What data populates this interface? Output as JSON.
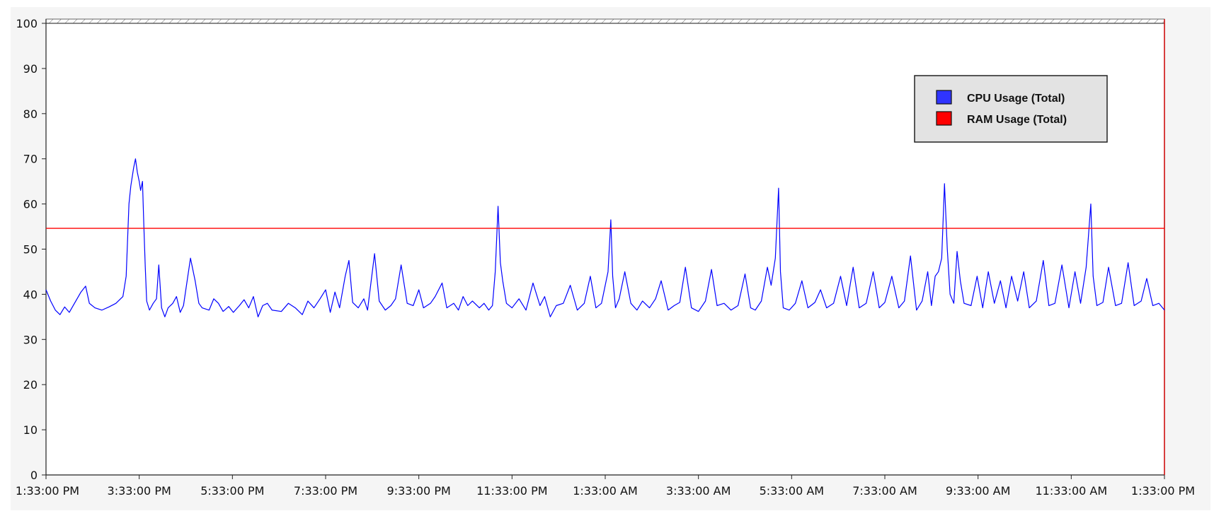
{
  "chart_data": {
    "type": "line",
    "title": "",
    "xlabel": "",
    "ylabel": "",
    "ylim": [
      0,
      100
    ],
    "yticks": [
      0,
      10,
      20,
      30,
      40,
      50,
      60,
      70,
      80,
      90,
      100
    ],
    "grid": false,
    "legend_position": "top-right",
    "x_tick_labels": [
      "1:33:00 PM",
      "3:33:00 PM",
      "5:33:00 PM",
      "7:33:00 PM",
      "9:33:00 PM",
      "11:33:00 PM",
      "1:33:00 AM",
      "3:33:00 AM",
      "5:33:00 AM",
      "7:33:00 AM",
      "9:33:00 AM",
      "11:33:00 AM",
      "1:33:00 PM"
    ],
    "x_range_hours": [
      0,
      24
    ],
    "series": [
      {
        "name": "CPU Usage (Total)",
        "color": "#0000ff",
        "baseline": 37.5,
        "points": [
          [
            0,
            41
          ],
          [
            0.1,
            38.5
          ],
          [
            0.2,
            36.5
          ],
          [
            0.3,
            35.5
          ],
          [
            0.4,
            37.2
          ],
          [
            0.5,
            36
          ],
          [
            0.6,
            37.8
          ],
          [
            0.75,
            40.5
          ],
          [
            0.85,
            41.8
          ],
          [
            0.93,
            38
          ],
          [
            1.05,
            37
          ],
          [
            1.2,
            36.5
          ],
          [
            1.35,
            37.2
          ],
          [
            1.5,
            38
          ],
          [
            1.65,
            39.5
          ],
          [
            1.72,
            44
          ],
          [
            1.78,
            60
          ],
          [
            1.82,
            64
          ],
          [
            1.88,
            68
          ],
          [
            1.92,
            70
          ],
          [
            1.96,
            67
          ],
          [
            2.0,
            65
          ],
          [
            2.03,
            63
          ],
          [
            2.07,
            65
          ],
          [
            2.1,
            55
          ],
          [
            2.13,
            46
          ],
          [
            2.16,
            38.5
          ],
          [
            2.22,
            36.5
          ],
          [
            2.3,
            38
          ],
          [
            2.37,
            39
          ],
          [
            2.42,
            46.5
          ],
          [
            2.48,
            37
          ],
          [
            2.55,
            35
          ],
          [
            2.62,
            37
          ],
          [
            2.72,
            38
          ],
          [
            2.8,
            39.5
          ],
          [
            2.88,
            36
          ],
          [
            2.95,
            37.5
          ],
          [
            3.1,
            48
          ],
          [
            3.2,
            43
          ],
          [
            3.28,
            38
          ],
          [
            3.35,
            37
          ],
          [
            3.5,
            36.5
          ],
          [
            3.6,
            39
          ],
          [
            3.7,
            38
          ],
          [
            3.8,
            36.2
          ],
          [
            3.92,
            37.3
          ],
          [
            4.02,
            36
          ],
          [
            4.15,
            37.5
          ],
          [
            4.25,
            38.8
          ],
          [
            4.35,
            37
          ],
          [
            4.45,
            39.5
          ],
          [
            4.55,
            35
          ],
          [
            4.65,
            37.5
          ],
          [
            4.75,
            38
          ],
          [
            4.85,
            36.5
          ],
          [
            5.05,
            36.2
          ],
          [
            5.2,
            38
          ],
          [
            5.35,
            37
          ],
          [
            5.5,
            35.5
          ],
          [
            5.62,
            38.5
          ],
          [
            5.75,
            37
          ],
          [
            5.88,
            39
          ],
          [
            6.0,
            41
          ],
          [
            6.1,
            36
          ],
          [
            6.2,
            40.5
          ],
          [
            6.3,
            37
          ],
          [
            6.42,
            44
          ],
          [
            6.5,
            47.5
          ],
          [
            6.58,
            38.2
          ],
          [
            6.7,
            37
          ],
          [
            6.82,
            39
          ],
          [
            6.9,
            36.5
          ],
          [
            7.05,
            49
          ],
          [
            7.15,
            38.5
          ],
          [
            7.28,
            36.5
          ],
          [
            7.4,
            37.5
          ],
          [
            7.5,
            39
          ],
          [
            7.62,
            46.5
          ],
          [
            7.75,
            38
          ],
          [
            7.88,
            37.5
          ],
          [
            8.0,
            41
          ],
          [
            8.1,
            37
          ],
          [
            8.25,
            38
          ],
          [
            8.35,
            39.5
          ],
          [
            8.5,
            42.5
          ],
          [
            8.6,
            37
          ],
          [
            8.75,
            38
          ],
          [
            8.85,
            36.5
          ],
          [
            8.95,
            39.5
          ],
          [
            9.05,
            37.5
          ],
          [
            9.15,
            38.5
          ],
          [
            9.3,
            37
          ],
          [
            9.4,
            38
          ],
          [
            9.5,
            36.5
          ],
          [
            9.58,
            37.5
          ],
          [
            9.64,
            45
          ],
          [
            9.7,
            59.5
          ],
          [
            9.75,
            47
          ],
          [
            9.8,
            43
          ],
          [
            9.88,
            38
          ],
          [
            10.0,
            37
          ],
          [
            10.15,
            39
          ],
          [
            10.3,
            36.5
          ],
          [
            10.45,
            42.5
          ],
          [
            10.6,
            37.5
          ],
          [
            10.7,
            39.5
          ],
          [
            10.82,
            35
          ],
          [
            10.95,
            37.5
          ],
          [
            11.1,
            38
          ],
          [
            11.25,
            42
          ],
          [
            11.4,
            36.5
          ],
          [
            11.55,
            38
          ],
          [
            11.68,
            44
          ],
          [
            11.8,
            37
          ],
          [
            11.92,
            38
          ],
          [
            12.0,
            42
          ],
          [
            12.06,
            45
          ],
          [
            12.12,
            56.5
          ],
          [
            12.16,
            44
          ],
          [
            12.22,
            37
          ],
          [
            12.3,
            39
          ],
          [
            12.42,
            45
          ],
          [
            12.55,
            38
          ],
          [
            12.68,
            36.5
          ],
          [
            12.8,
            38.5
          ],
          [
            12.95,
            37
          ],
          [
            13.08,
            39
          ],
          [
            13.2,
            43
          ],
          [
            13.35,
            36.5
          ],
          [
            13.48,
            37.5
          ],
          [
            13.6,
            38.2
          ],
          [
            13.72,
            46
          ],
          [
            13.85,
            37
          ],
          [
            14.0,
            36.2
          ],
          [
            14.15,
            38.5
          ],
          [
            14.28,
            45.5
          ],
          [
            14.4,
            37.5
          ],
          [
            14.55,
            38
          ],
          [
            14.7,
            36.5
          ],
          [
            14.85,
            37.5
          ],
          [
            15.0,
            44.5
          ],
          [
            15.12,
            37
          ],
          [
            15.22,
            36.5
          ],
          [
            15.35,
            38.5
          ],
          [
            15.48,
            46
          ],
          [
            15.56,
            42
          ],
          [
            15.65,
            48
          ],
          [
            15.72,
            63.5
          ],
          [
            15.76,
            45
          ],
          [
            15.82,
            37
          ],
          [
            15.95,
            36.5
          ],
          [
            16.08,
            38
          ],
          [
            16.22,
            43
          ],
          [
            16.35,
            37
          ],
          [
            16.5,
            38.2
          ],
          [
            16.62,
            41
          ],
          [
            16.75,
            37
          ],
          [
            16.9,
            38
          ],
          [
            17.05,
            44
          ],
          [
            17.18,
            37.5
          ],
          [
            17.32,
            46
          ],
          [
            17.45,
            37
          ],
          [
            17.6,
            38
          ],
          [
            17.75,
            45
          ],
          [
            17.88,
            37
          ],
          [
            18.0,
            38.2
          ],
          [
            18.15,
            44
          ],
          [
            18.3,
            37
          ],
          [
            18.42,
            38.5
          ],
          [
            18.55,
            48.5
          ],
          [
            18.68,
            36.5
          ],
          [
            18.8,
            38.5
          ],
          [
            18.92,
            45
          ],
          [
            19.0,
            37.5
          ],
          [
            19.08,
            44
          ],
          [
            19.15,
            45
          ],
          [
            19.22,
            48
          ],
          [
            19.28,
            64.5
          ],
          [
            19.34,
            50
          ],
          [
            19.4,
            40
          ],
          [
            19.48,
            38
          ],
          [
            19.55,
            49.5
          ],
          [
            19.62,
            43
          ],
          [
            19.7,
            38
          ],
          [
            19.85,
            37.5
          ],
          [
            19.98,
            44
          ],
          [
            20.1,
            37
          ],
          [
            20.22,
            45
          ],
          [
            20.35,
            38
          ],
          [
            20.48,
            43
          ],
          [
            20.6,
            37
          ],
          [
            20.72,
            44
          ],
          [
            20.85,
            38.5
          ],
          [
            20.98,
            45
          ],
          [
            21.1,
            37
          ],
          [
            21.25,
            38.5
          ],
          [
            21.4,
            47.5
          ],
          [
            21.52,
            37.5
          ],
          [
            21.65,
            38
          ],
          [
            21.8,
            46.5
          ],
          [
            21.95,
            37
          ],
          [
            22.08,
            45
          ],
          [
            22.2,
            38
          ],
          [
            22.32,
            46
          ],
          [
            22.42,
            60
          ],
          [
            22.47,
            44
          ],
          [
            22.55,
            37.5
          ],
          [
            22.68,
            38.2
          ],
          [
            22.8,
            46
          ],
          [
            22.95,
            37.5
          ],
          [
            23.08,
            38
          ],
          [
            23.22,
            47
          ],
          [
            23.35,
            37.5
          ],
          [
            23.5,
            38.5
          ],
          [
            23.62,
            43.5
          ],
          [
            23.75,
            37.5
          ],
          [
            23.88,
            38
          ],
          [
            24.0,
            36.5
          ]
        ]
      },
      {
        "name": "RAM Usage (Total)",
        "color": "#ff0000",
        "points": [
          [
            0,
            54.6
          ],
          [
            8.0,
            54.6
          ],
          [
            16.0,
            54.6
          ],
          [
            24.0,
            54.6
          ]
        ]
      }
    ]
  }
}
